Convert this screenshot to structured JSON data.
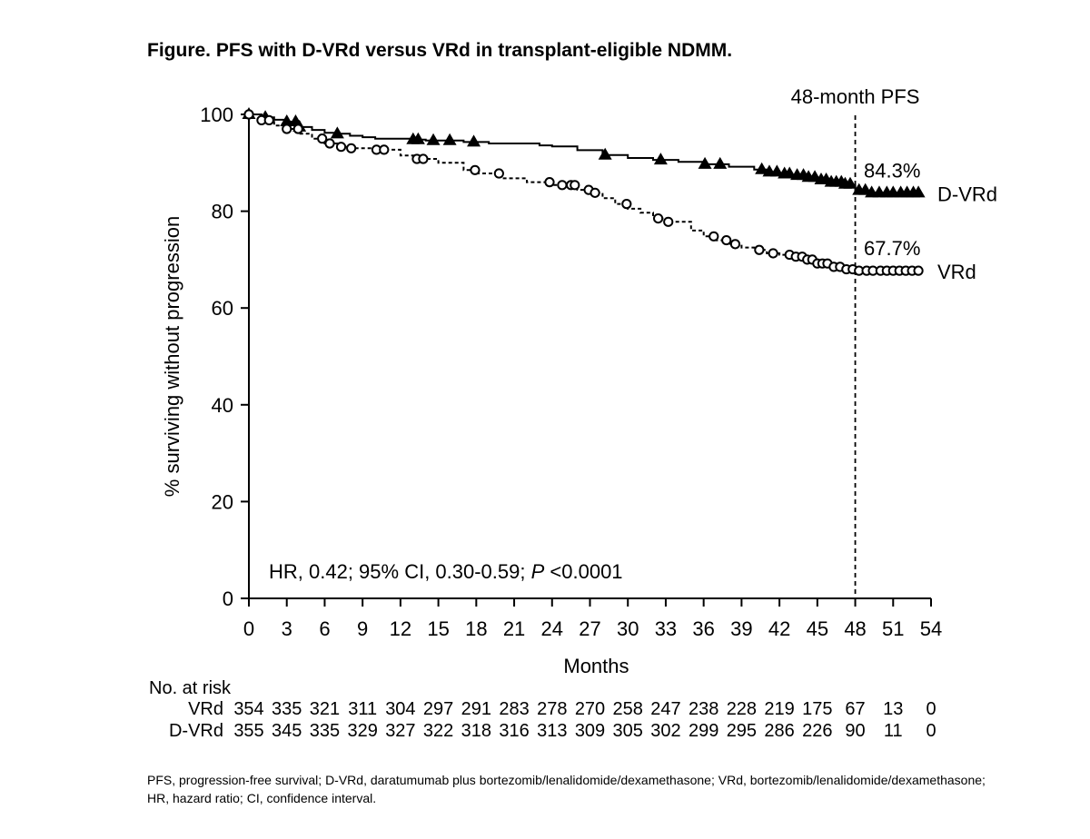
{
  "figure": {
    "title": "Figure. PFS with D-VRd versus VRd in transplant-eligible NDMM.",
    "footnote": [
      "PFS, progression-free survival; D-VRd, daratumumab plus bortezomib/lenalidomide/dexamethasone; VRd, bortezomib/lenalidomide/dexamethasone;",
      "HR, hazard ratio; CI, confidence interval."
    ]
  },
  "chart_data": {
    "type": "line",
    "subtype": "kaplan-meier",
    "xlabel": "Months",
    "ylabel": "% surviving without progression",
    "xlim": [
      0,
      54
    ],
    "ylim": [
      0,
      100
    ],
    "xticks": [
      0,
      3,
      6,
      9,
      12,
      15,
      18,
      21,
      24,
      27,
      30,
      33,
      36,
      39,
      42,
      45,
      48,
      51,
      54
    ],
    "yticks": [
      0,
      20,
      40,
      60,
      80,
      100
    ],
    "reference_line": {
      "x": 48,
      "label": "48-month PFS"
    },
    "stats_text": {
      "prefix": "HR, 0.42; 95% CI, 0.30-0.59; ",
      "p_symbol": "P",
      "p_value": " <0.0001"
    },
    "series": [
      {
        "name": "D-VRd",
        "line_style": "solid",
        "marker": "triangle",
        "pfs_48_label": "84.3%",
        "points": [
          [
            0,
            100
          ],
          [
            1,
            99.4
          ],
          [
            2,
            98.9
          ],
          [
            3,
            98.5
          ],
          [
            4,
            97.4
          ],
          [
            5,
            96.8
          ],
          [
            6,
            96.2
          ],
          [
            7,
            96.0
          ],
          [
            8,
            95.6
          ],
          [
            9,
            95.3
          ],
          [
            10,
            95.0
          ],
          [
            12,
            95.0
          ],
          [
            13,
            94.8
          ],
          [
            14,
            94.6
          ],
          [
            16,
            94.6
          ],
          [
            17,
            94.3
          ],
          [
            19,
            94.0
          ],
          [
            21,
            94.0
          ],
          [
            23,
            93.6
          ],
          [
            24,
            93.4
          ],
          [
            26,
            92.6
          ],
          [
            28,
            91.6
          ],
          [
            30,
            91.0
          ],
          [
            32,
            90.6
          ],
          [
            34,
            90.2
          ],
          [
            36,
            89.7
          ],
          [
            38,
            89.2
          ],
          [
            40,
            88.6
          ],
          [
            41,
            88.1
          ],
          [
            42,
            87.7
          ],
          [
            43,
            87.4
          ],
          [
            44,
            87.0
          ],
          [
            45,
            86.5
          ],
          [
            46,
            86.0
          ],
          [
            47,
            85.6
          ],
          [
            47.7,
            85.3
          ],
          [
            48,
            84.3
          ],
          [
            49,
            83.8
          ],
          [
            53,
            83.8
          ]
        ],
        "censor_times": [
          0,
          1.3,
          3,
          3.7,
          4,
          7,
          13,
          13.4,
          14.6,
          15.9,
          17.8,
          28.2,
          32.6,
          36.1,
          37.3,
          40.6,
          41.2,
          41.8,
          42.4,
          42.8,
          43.4,
          43.9,
          44.3,
          44.8,
          45.3,
          45.7,
          46.1,
          46.5,
          46.9,
          47.2,
          47.6,
          48.3,
          48.8,
          49.3,
          49.9,
          50.5,
          51,
          51.6,
          52.1,
          52.6,
          53
        ]
      },
      {
        "name": "VRd",
        "line_style": "dashed",
        "marker": "circle",
        "pfs_48_label": "67.7%",
        "points": [
          [
            0,
            100
          ],
          [
            1,
            98.8
          ],
          [
            2,
            97.7
          ],
          [
            3,
            97.0
          ],
          [
            4,
            96.0
          ],
          [
            5,
            95.0
          ],
          [
            6,
            94.0
          ],
          [
            7,
            93.3
          ],
          [
            8,
            93.0
          ],
          [
            10,
            92.7
          ],
          [
            12,
            91.5
          ],
          [
            13,
            90.8
          ],
          [
            15,
            90.0
          ],
          [
            17,
            88.5
          ],
          [
            18,
            87.8
          ],
          [
            20,
            86.8
          ],
          [
            22,
            86.0
          ],
          [
            24,
            85.4
          ],
          [
            26,
            84.4
          ],
          [
            27,
            83.8
          ],
          [
            28,
            82.7
          ],
          [
            29,
            81.5
          ],
          [
            30,
            80.5
          ],
          [
            31,
            79.7
          ],
          [
            32,
            78.5
          ],
          [
            33,
            77.8
          ],
          [
            35,
            76.0
          ],
          [
            36,
            74.8
          ],
          [
            37,
            74.0
          ],
          [
            38,
            73.2
          ],
          [
            39,
            72.5
          ],
          [
            40,
            72.0
          ],
          [
            41,
            71.3
          ],
          [
            42,
            71.0
          ],
          [
            43,
            70.6
          ],
          [
            44,
            70.0
          ],
          [
            45,
            69.2
          ],
          [
            46,
            68.5
          ],
          [
            47,
            68.0
          ],
          [
            48,
            67.7
          ],
          [
            53,
            67.7
          ]
        ],
        "censor_times": [
          0,
          1,
          1.6,
          3,
          3.9,
          5.8,
          6.4,
          7.3,
          8.1,
          10.1,
          10.7,
          13.3,
          13.8,
          17.9,
          19.8,
          23.8,
          24.8,
          25.5,
          25.8,
          26.9,
          27.4,
          29.9,
          32.4,
          33.2,
          36.8,
          37.8,
          38.5,
          40.4,
          41.5,
          42.8,
          43.3,
          43.8,
          44.2,
          44.6,
          45,
          45.4,
          45.8,
          46.3,
          46.8,
          47.3,
          47.8,
          48.3,
          48.9,
          49.4,
          50,
          50.5,
          51,
          51.5,
          52,
          52.5,
          53
        ]
      }
    ],
    "risk_table": {
      "title": "No. at risk",
      "times": [
        0,
        3,
        6,
        9,
        12,
        15,
        18,
        21,
        24,
        27,
        30,
        33,
        36,
        39,
        42,
        45,
        48,
        51,
        54
      ],
      "rows": [
        {
          "name": "VRd",
          "values": [
            354,
            335,
            321,
            311,
            304,
            297,
            291,
            283,
            278,
            270,
            258,
            247,
            238,
            228,
            219,
            175,
            67,
            13,
            0
          ]
        },
        {
          "name": "D-VRd",
          "values": [
            355,
            345,
            335,
            329,
            327,
            322,
            318,
            316,
            313,
            309,
            305,
            302,
            299,
            295,
            286,
            226,
            90,
            11,
            0
          ]
        }
      ]
    }
  }
}
